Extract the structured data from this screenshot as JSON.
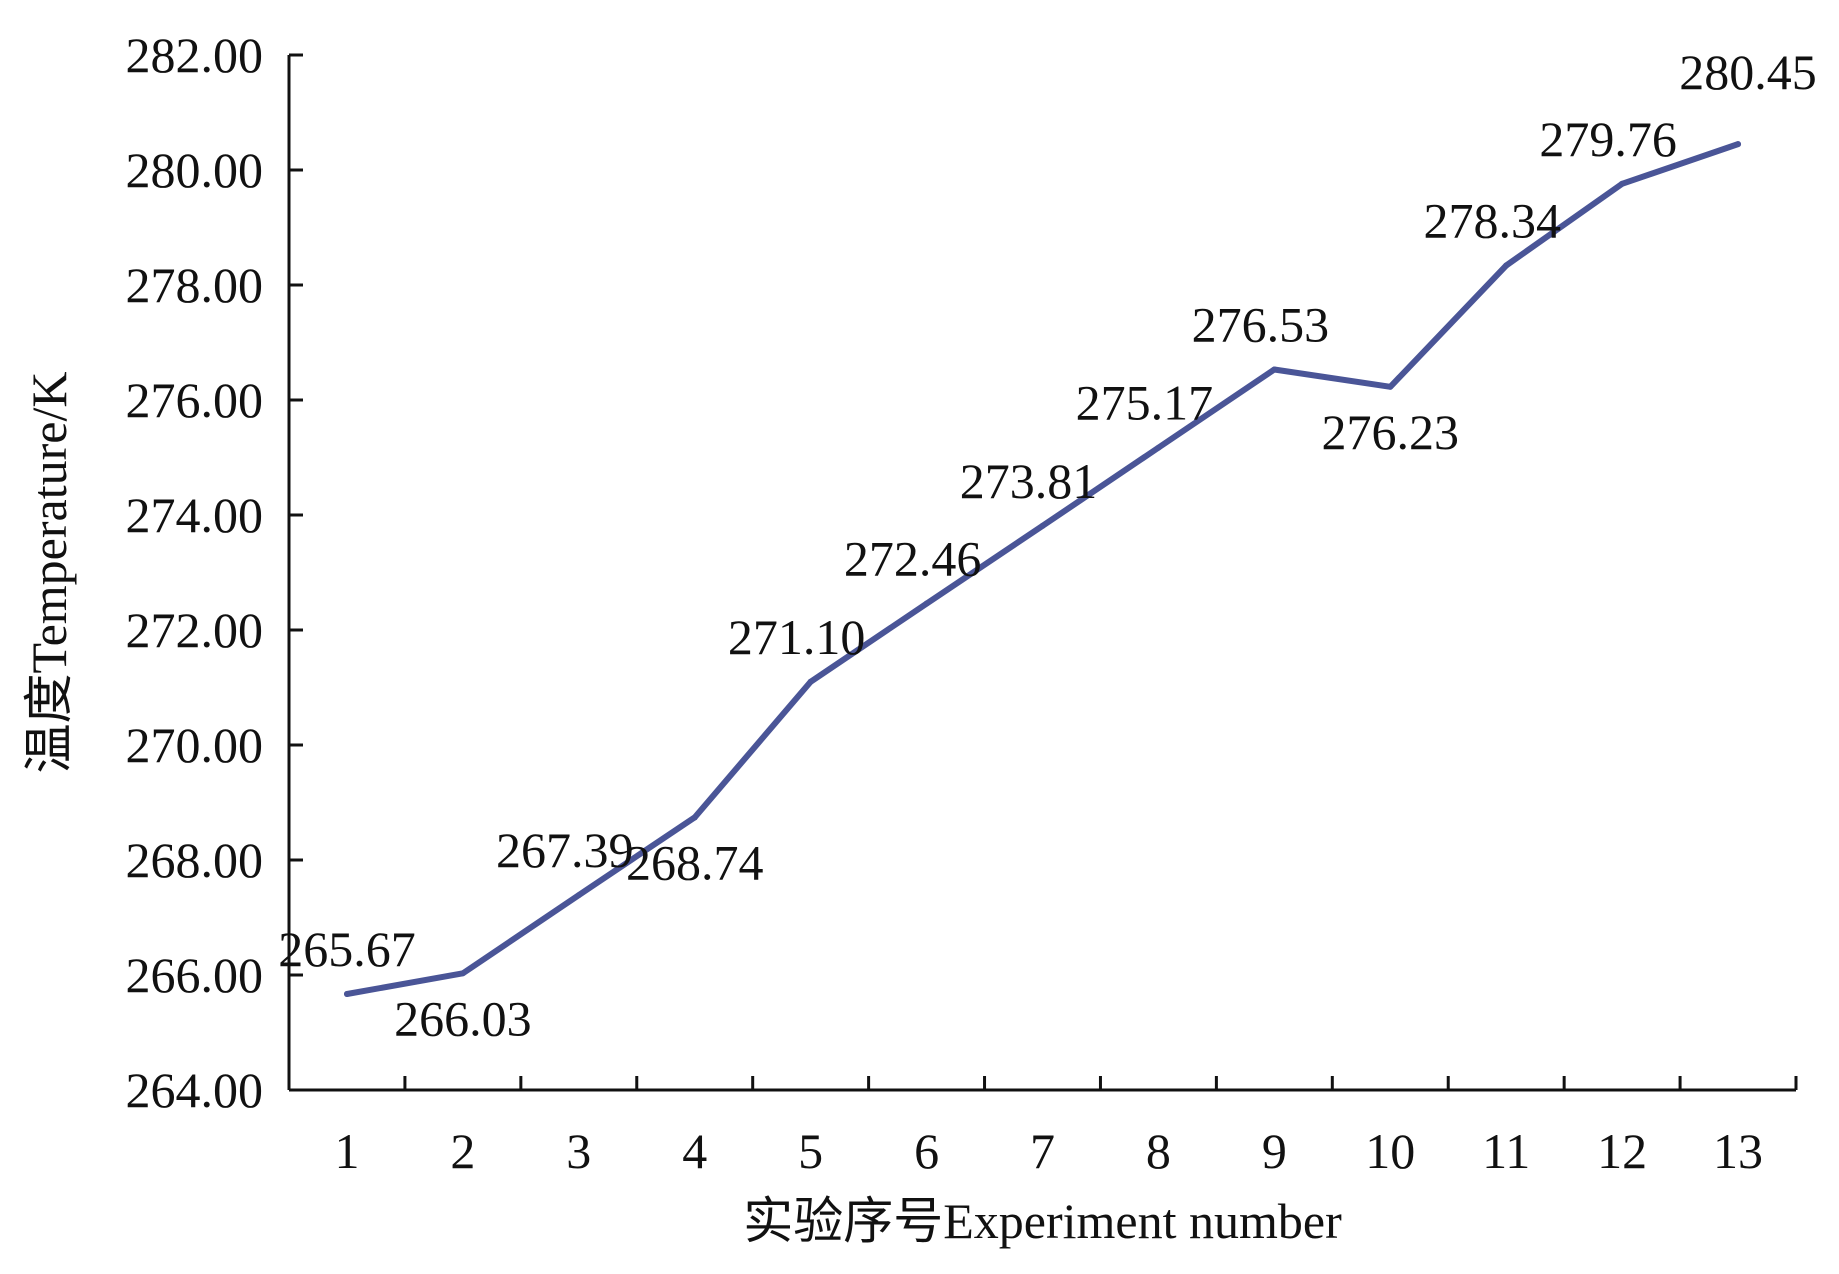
{
  "chart_data": {
    "type": "line",
    "x": [
      "1",
      "2",
      "3",
      "4",
      "5",
      "6",
      "7",
      "8",
      "9",
      "10",
      "11",
      "12",
      "13"
    ],
    "series": [
      {
        "values": [
          265.67,
          266.03,
          267.39,
          268.74,
          271.1,
          272.46,
          273.81,
          275.17,
          276.53,
          276.23,
          278.34,
          279.76,
          280.45
        ],
        "labels": [
          "265.67",
          "266.03",
          "267.39",
          "268.74",
          "271.10",
          "272.46",
          "273.81",
          "275.17",
          "276.53",
          "276.23",
          "278.34",
          "279.76",
          "280.45"
        ],
        "color": "#4a5597"
      }
    ],
    "yticks": [
      "264.00",
      "266.00",
      "268.00",
      "270.00",
      "272.00",
      "274.00",
      "276.00",
      "278.00",
      "280.00",
      "282.00"
    ],
    "ylim": [
      264,
      282
    ],
    "xlabel": "实验序号Experiment number",
    "ylabel": "温度Temperature/K",
    "title": "",
    "grid": false,
    "legend": "none"
  }
}
